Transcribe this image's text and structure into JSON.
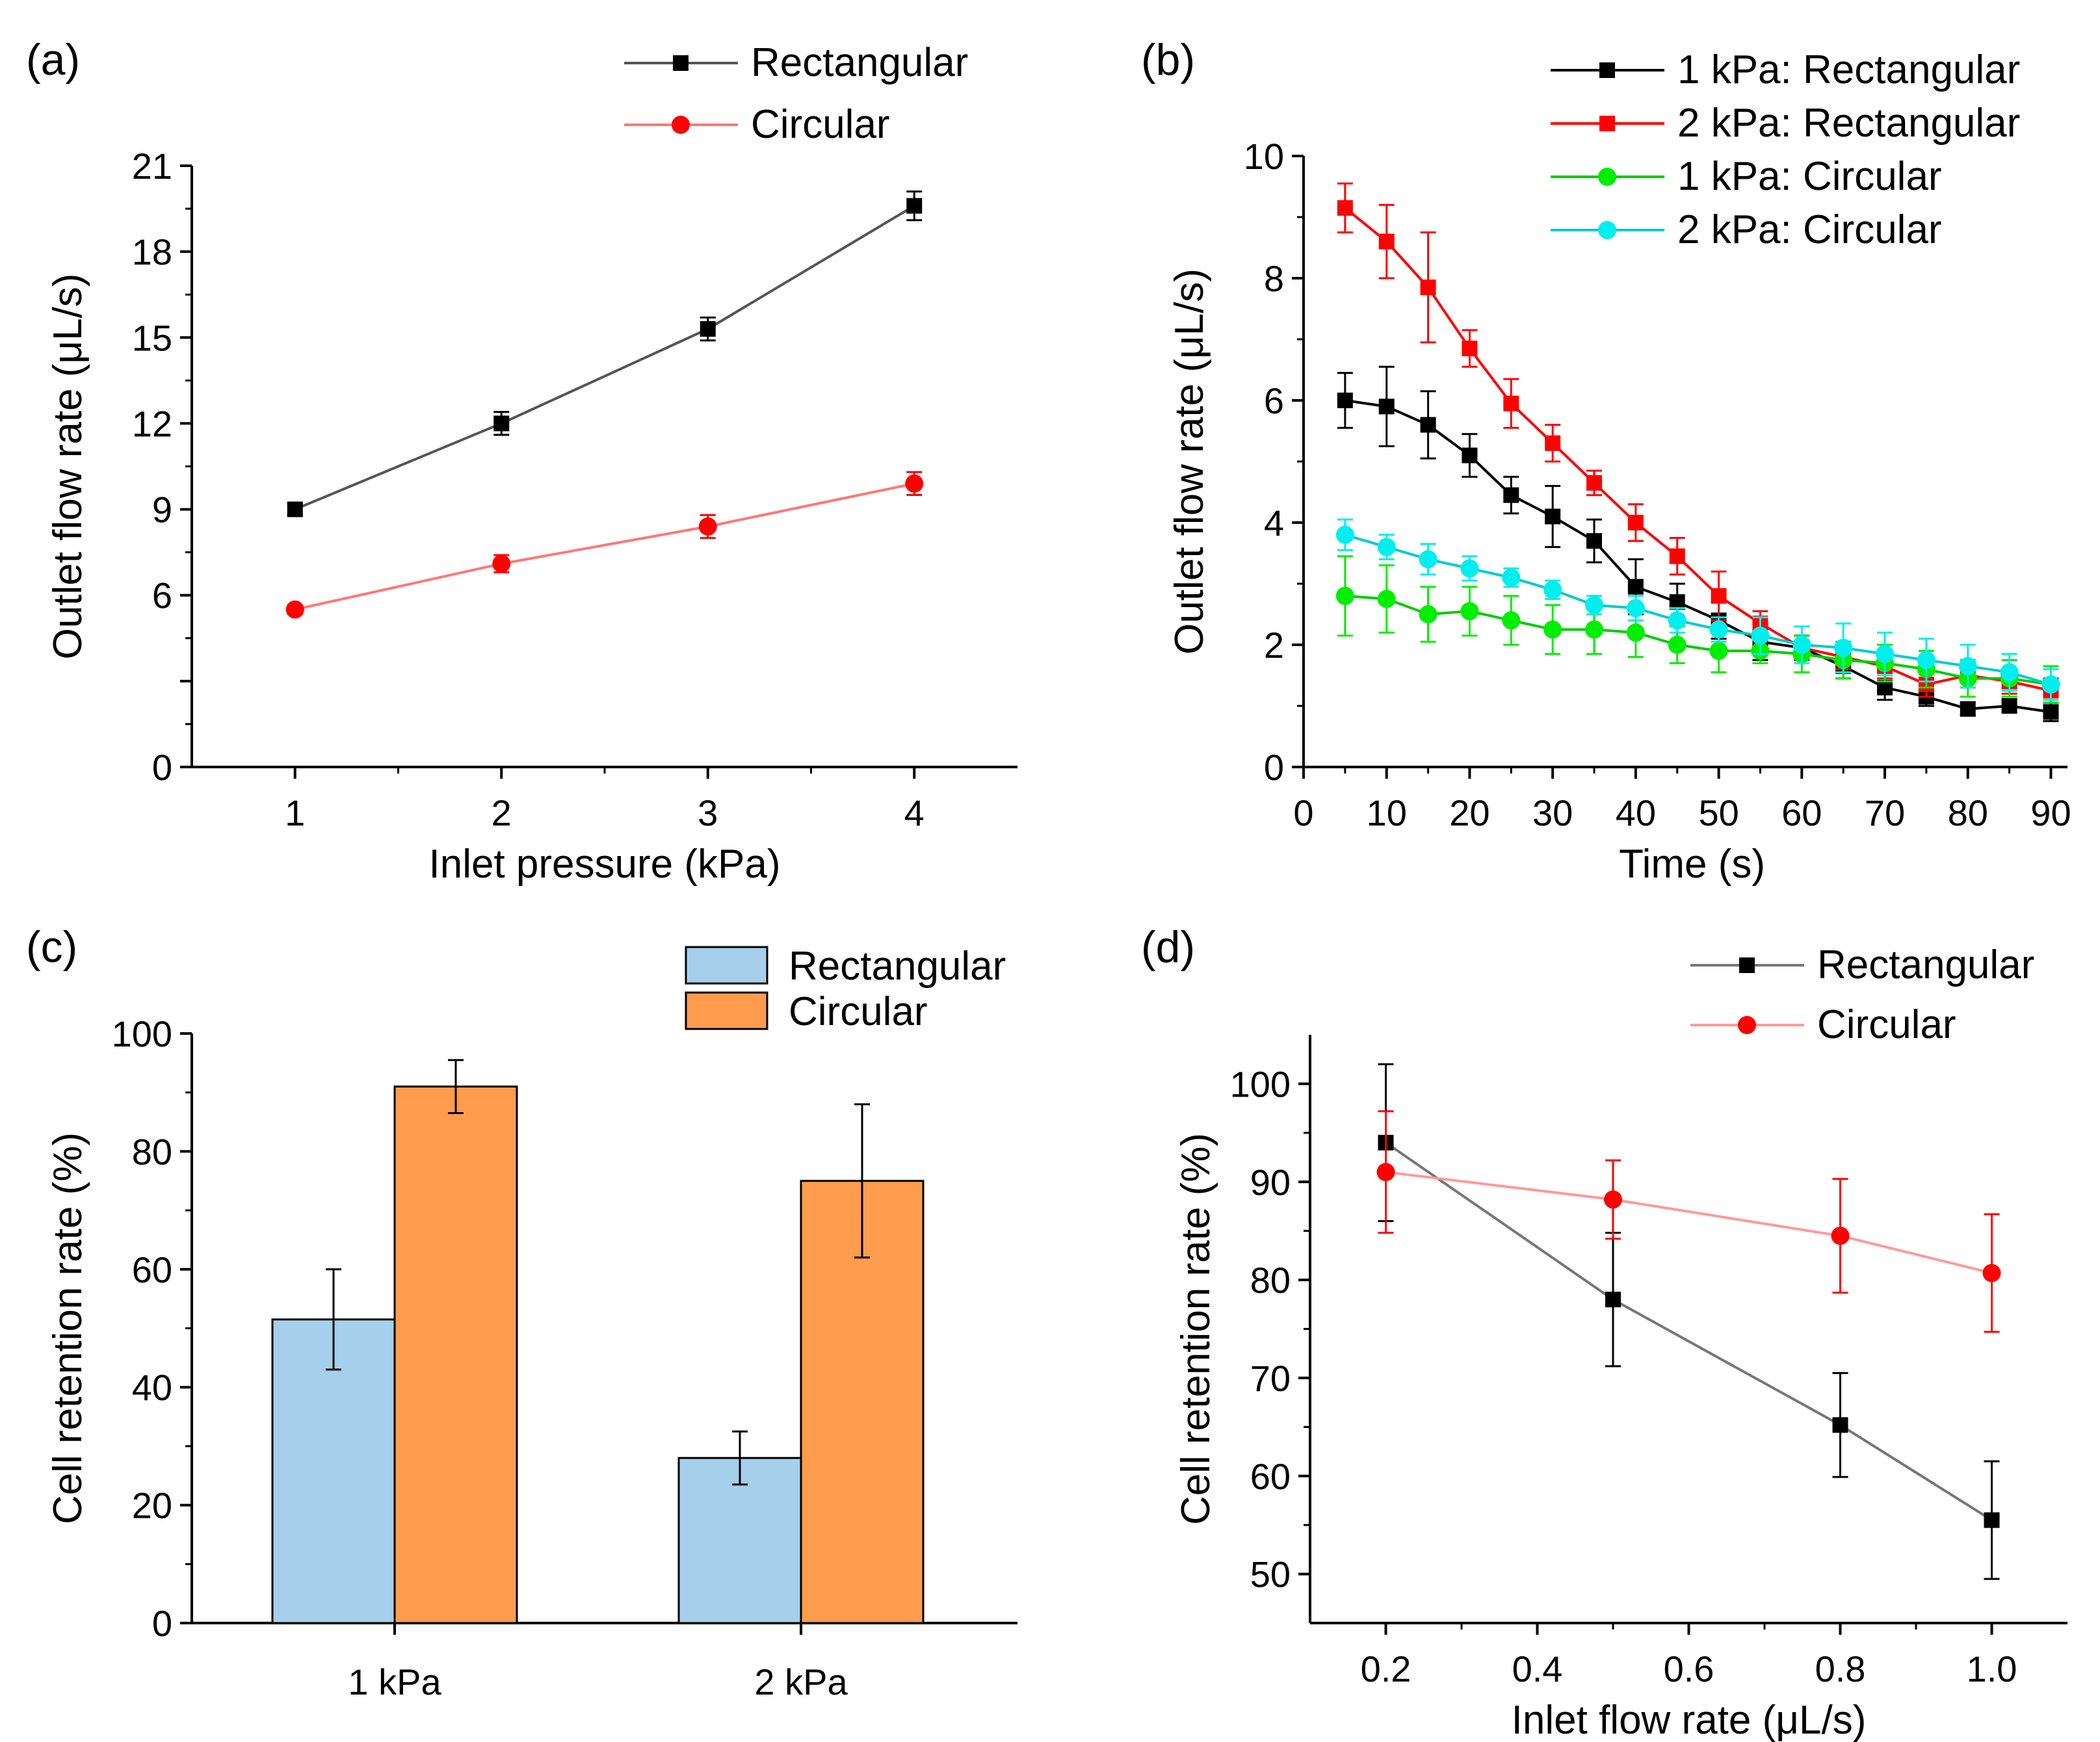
{
  "chart_data": [
    {
      "panel": "(a)",
      "type": "line",
      "xlabel": "Inlet pressure (kPa)",
      "ylabel": "Outlet flow rate (μL/s)",
      "xlim": [
        0.5,
        4.5
      ],
      "ylim": [
        0,
        21
      ],
      "xticks": [
        1,
        2,
        3,
        4
      ],
      "yticks": [
        0,
        3,
        6,
        9,
        12,
        15,
        18,
        21
      ],
      "yticklabels": [
        "0",
        "",
        "6",
        "9",
        "12",
        "15",
        "18",
        "21"
      ],
      "legend_position": "top-right",
      "series": [
        {
          "name": "Rectangular",
          "color": "#000000",
          "line": "#555555",
          "marker": "square",
          "x": [
            1,
            2,
            3,
            4
          ],
          "y": [
            9.0,
            12.0,
            15.3,
            19.6
          ],
          "err": [
            0.2,
            0.4,
            0.4,
            0.5
          ]
        },
        {
          "name": "Circular",
          "color": "#ff0000",
          "line": "#ff7777",
          "marker": "circle",
          "x": [
            1,
            2,
            3,
            4
          ],
          "y": [
            5.5,
            7.1,
            8.4,
            9.9
          ],
          "err": [
            0.15,
            0.3,
            0.4,
            0.4
          ]
        }
      ]
    },
    {
      "panel": "(b)",
      "type": "line",
      "xlabel": "Time (s)",
      "ylabel": "Outlet flow rate (μL/s)",
      "xlim": [
        0,
        92
      ],
      "ylim": [
        0,
        10
      ],
      "xticks": [
        0,
        10,
        20,
        30,
        40,
        50,
        60,
        70,
        80,
        90
      ],
      "yticks": [
        0,
        2,
        4,
        6,
        8,
        10
      ],
      "legend_position": "top-right",
      "series": [
        {
          "name": "1 kPa: Rectangular",
          "color": "#000000",
          "line": "#000000",
          "marker": "square",
          "x": [
            5,
            10,
            15,
            20,
            25,
            30,
            35,
            40,
            45,
            50,
            55,
            60,
            65,
            70,
            75,
            80,
            85,
            90
          ],
          "y": [
            6.0,
            5.9,
            5.6,
            5.1,
            4.45,
            4.1,
            3.7,
            2.95,
            2.7,
            2.4,
            2.05,
            1.95,
            1.65,
            1.3,
            1.15,
            0.95,
            1.0,
            0.9
          ],
          "err": [
            0.45,
            0.65,
            0.55,
            0.35,
            0.3,
            0.5,
            0.35,
            0.45,
            0.3,
            0.3,
            0.3,
            0.2,
            0.2,
            0.2,
            0.15,
            0.1,
            0.1,
            0.15
          ]
        },
        {
          "name": "2 kPa: Rectangular",
          "color": "#ff0000",
          "line": "#ff0000",
          "marker": "square",
          "x": [
            5,
            10,
            15,
            20,
            25,
            30,
            35,
            40,
            45,
            50,
            55,
            60,
            65,
            70,
            75,
            80,
            85,
            90
          ],
          "y": [
            9.15,
            8.6,
            7.85,
            6.85,
            5.95,
            5.3,
            4.65,
            4.0,
            3.45,
            2.8,
            2.35,
            1.95,
            1.8,
            1.65,
            1.35,
            1.5,
            1.4,
            1.25
          ],
          "err": [
            0.4,
            0.6,
            0.9,
            0.3,
            0.4,
            0.3,
            0.2,
            0.3,
            0.3,
            0.4,
            0.2,
            0.2,
            0.2,
            0.2,
            0.2,
            0.2,
            0.2,
            0.2
          ]
        },
        {
          "name": "1 kPa: Circular",
          "color": "#00ee00",
          "line": "#00cc00",
          "marker": "circle",
          "x": [
            5,
            10,
            15,
            20,
            25,
            30,
            35,
            40,
            45,
            50,
            55,
            60,
            65,
            70,
            75,
            80,
            85,
            90
          ],
          "y": [
            2.8,
            2.75,
            2.5,
            2.55,
            2.4,
            2.25,
            2.25,
            2.2,
            2.0,
            1.9,
            1.9,
            1.85,
            1.75,
            1.7,
            1.6,
            1.45,
            1.45,
            1.35
          ],
          "err": [
            0.65,
            0.55,
            0.45,
            0.4,
            0.4,
            0.4,
            0.4,
            0.4,
            0.3,
            0.35,
            0.2,
            0.3,
            0.3,
            0.3,
            0.3,
            0.3,
            0.3,
            0.3
          ]
        },
        {
          "name": "2 kPa: Circular",
          "color": "#00eeee",
          "line": "#00cccc",
          "marker": "circle",
          "x": [
            5,
            10,
            15,
            20,
            25,
            30,
            35,
            40,
            45,
            50,
            55,
            60,
            65,
            70,
            75,
            80,
            85,
            90
          ],
          "y": [
            3.8,
            3.6,
            3.4,
            3.25,
            3.1,
            2.9,
            2.65,
            2.6,
            2.4,
            2.25,
            2.15,
            2.0,
            1.95,
            1.85,
            1.75,
            1.65,
            1.55,
            1.35
          ],
          "err": [
            0.25,
            0.2,
            0.25,
            0.2,
            0.15,
            0.15,
            0.15,
            0.2,
            0.2,
            0.2,
            0.3,
            0.3,
            0.4,
            0.35,
            0.35,
            0.35,
            0.3,
            0.25
          ]
        }
      ]
    },
    {
      "panel": "(c)",
      "type": "bar",
      "xlabel": "",
      "ylabel": "Cell retention rate (%)",
      "categories": [
        "1 kPa",
        "2 kPa"
      ],
      "ylim": [
        0,
        100
      ],
      "yticks": [
        0,
        20,
        40,
        60,
        80,
        100
      ],
      "legend_position": "top-right",
      "series": [
        {
          "name": "Rectangular",
          "color": "#a6cfeb",
          "values": [
            51.5,
            28.0
          ],
          "err": [
            8.5,
            4.5
          ]
        },
        {
          "name": "Circular",
          "color": "#ff9c4d",
          "values": [
            91.0,
            75.0
          ],
          "err": [
            4.5,
            13.0
          ]
        }
      ]
    },
    {
      "panel": "(d)",
      "type": "line",
      "xlabel": "Inlet flow rate (μL/s)",
      "ylabel": "Cell retention rate (%)",
      "xlim": [
        0.1,
        1.1
      ],
      "ylim": [
        45,
        105
      ],
      "xticks": [
        0.2,
        0.4,
        0.6,
        0.8,
        1.0
      ],
      "xticklabels": [
        "0.2",
        "0.4",
        "0.6",
        "0.8",
        "1.0"
      ],
      "yticks": [
        50,
        60,
        70,
        80,
        90,
        100
      ],
      "legend_position": "top-right",
      "series": [
        {
          "name": "Rectangular",
          "color": "#000000",
          "line": "#777777",
          "marker": "square",
          "x": [
            0.2,
            0.5,
            0.8,
            1.0
          ],
          "y": [
            94,
            78,
            65.2,
            55.5
          ],
          "err": [
            8,
            6.8,
            5.3,
            6.0
          ]
        },
        {
          "name": "Circular",
          "color": "#ff0000",
          "line": "#ff9999",
          "marker": "circle",
          "x": [
            0.2,
            0.5,
            0.8,
            1.0
          ],
          "y": [
            91,
            88.2,
            84.5,
            80.7
          ],
          "err": [
            6.2,
            4.0,
            5.8,
            6.0
          ]
        }
      ]
    }
  ]
}
